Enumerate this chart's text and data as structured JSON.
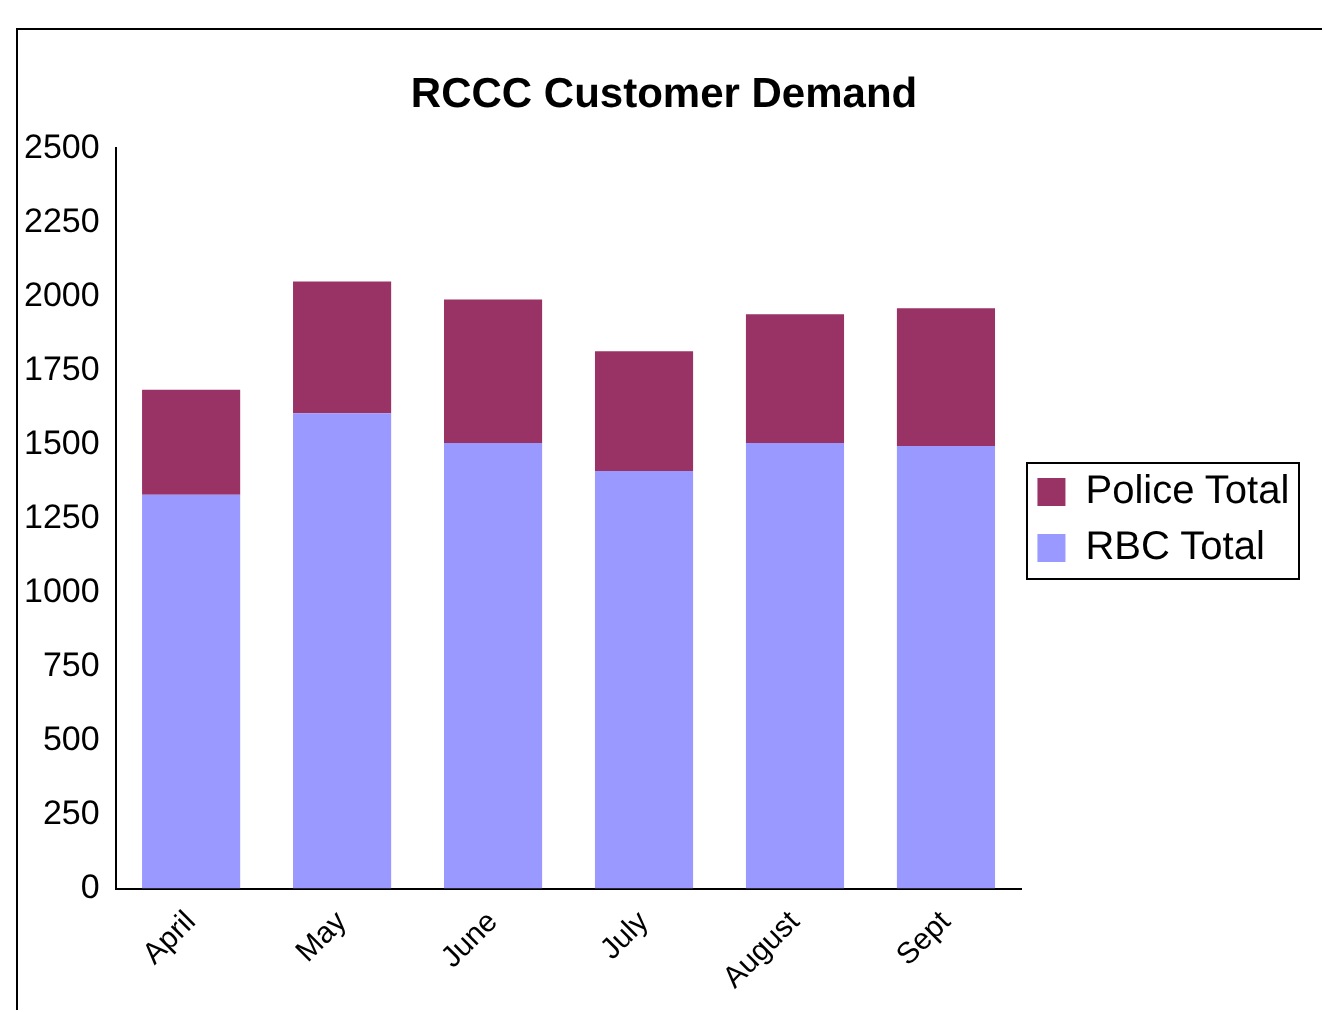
{
  "chart_data": {
    "type": "bar",
    "title": "RCCC Customer Demand",
    "categories": [
      "April",
      "May",
      "June",
      "July",
      "August",
      "Sept"
    ],
    "stacked": true,
    "series": [
      {
        "name": "RBC Total",
        "color": "#9999ff",
        "values": [
          1330,
          1605,
          1505,
          1410,
          1505,
          1495
        ]
      },
      {
        "name": "Police Total",
        "color": "#993366",
        "values": [
          355,
          445,
          485,
          405,
          435,
          465
        ]
      }
    ],
    "ylim": [
      0,
      2500
    ],
    "yticks": [
      0,
      250,
      500,
      750,
      1000,
      1250,
      1500,
      1750,
      2000,
      2250,
      2500
    ],
    "grid": false,
    "legend": "right"
  }
}
